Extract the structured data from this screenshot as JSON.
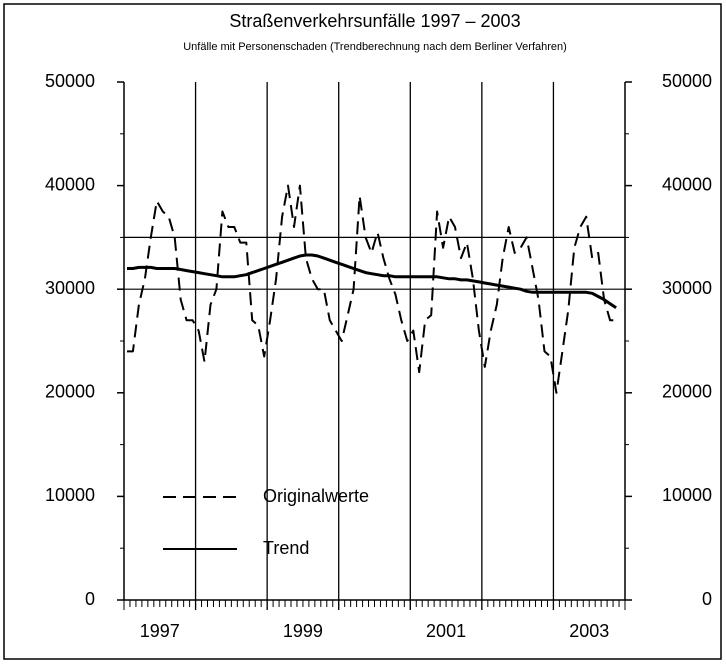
{
  "chart_data": {
    "type": "line",
    "title": "Straßenverkehrsunfälle 1997  –  2003",
    "subtitle": "Unfälle mit Personenschaden (Trendberechnung nach dem Berliner Verfahren)",
    "categories": [
      null,
      null,
      null,
      null,
      null,
      null,
      "1997",
      null,
      null,
      null,
      null,
      null,
      null,
      null,
      null,
      null,
      null,
      null,
      null,
      null,
      null,
      null,
      null,
      null,
      null,
      null,
      null,
      null,
      null,
      null,
      "1999",
      null,
      null,
      null,
      null,
      null,
      null,
      null,
      null,
      null,
      null,
      null,
      null,
      null,
      null,
      null,
      null,
      null,
      null,
      null,
      null,
      null,
      null,
      null,
      "2001",
      null,
      null,
      null,
      null,
      null,
      null,
      null,
      null,
      null,
      null,
      null,
      null,
      null,
      null,
      null,
      null,
      null,
      null,
      null,
      null,
      null,
      null,
      null,
      "2003",
      null,
      null,
      null,
      null,
      null
    ],
    "series": [
      {
        "name": "Originalwerte",
        "color": "#000000",
        "linestyle": "dashed",
        "values": [
          24000,
          24000,
          28500,
          31000,
          35000,
          38500,
          37500,
          37000,
          35000,
          29000,
          27000,
          27000,
          26000,
          23000,
          28500,
          30000,
          37500,
          36000,
          36000,
          34500,
          34500,
          27000,
          26500,
          23500,
          27000,
          31000,
          37000,
          40000,
          36000,
          40000,
          33000,
          31000,
          30000,
          30000,
          27000,
          26000,
          25000,
          27500,
          30000,
          39000,
          35000,
          33500,
          35500,
          33000,
          31000,
          29500,
          27000,
          25000,
          26000,
          22000,
          27000,
          27500,
          37500,
          34000,
          37000,
          36000,
          33000,
          34500,
          31000,
          26000,
          22500,
          26000,
          28500,
          33000,
          36000,
          33500,
          34000,
          35000,
          32000,
          29000,
          24000,
          23500,
          20000,
          24000,
          28000,
          34000,
          36000,
          37000,
          33000,
          33500,
          29000,
          27000,
          27000,
          null
        ]
      },
      {
        "name": "Trend",
        "color": "#000000",
        "linestyle": "solid",
        "values": [
          32000,
          32000,
          32100,
          32100,
          32100,
          32000,
          32000,
          32000,
          32000,
          31900,
          31800,
          31700,
          31600,
          31500,
          31400,
          31300,
          31200,
          31200,
          31200,
          31300,
          31400,
          31600,
          31800,
          32000,
          32200,
          32400,
          32600,
          32800,
          33000,
          33200,
          33300,
          33300,
          33200,
          33000,
          32800,
          32600,
          32400,
          32200,
          32000,
          31800,
          31600,
          31500,
          31400,
          31300,
          31300,
          31200,
          31200,
          31200,
          31200,
          31200,
          31200,
          31200,
          31200,
          31100,
          31000,
          31000,
          30900,
          30900,
          30800,
          30700,
          30600,
          30500,
          30400,
          30300,
          30200,
          30100,
          30000,
          29800,
          29700,
          29700,
          29700,
          29700,
          29700,
          29700,
          29700,
          29700,
          29700,
          29700,
          29600,
          29300,
          29000,
          28600,
          28200,
          null
        ]
      }
    ],
    "ylim": [
      0,
      50000
    ],
    "yticks": [
      0,
      10000,
      20000,
      30000,
      40000,
      50000
    ],
    "hlines": [
      35000,
      30000
    ]
  }
}
